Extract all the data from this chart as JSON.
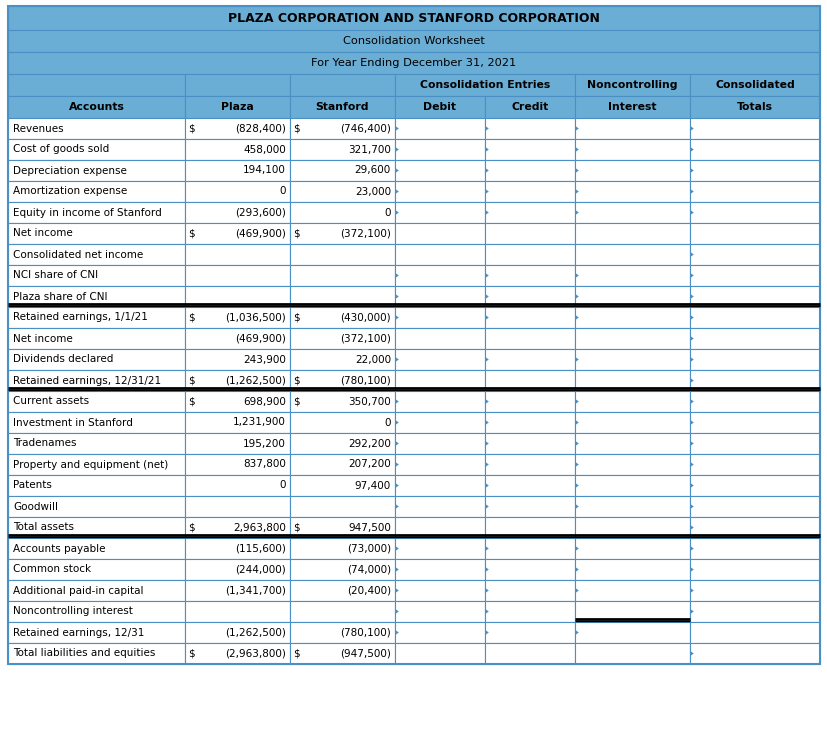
{
  "title1": "PLAZA CORPORATION AND STANFORD CORPORATION",
  "title2": "Consolidation Worksheet",
  "title3": "For Year Ending December 31, 2021",
  "header_bg": "#6aaed6",
  "white_bg": "#ffffff",
  "border_color": "#4a90c4",
  "thick_line_rows": [
    8,
    12,
    19,
    23
  ],
  "thick_line_cols_special": [
    {
      "row": 6,
      "cols": [
        6
      ]
    },
    {
      "row": 7,
      "cols": [
        3,
        4,
        5,
        6
      ]
    },
    {
      "row": 8,
      "cols": [
        3,
        4,
        5,
        6
      ]
    },
    {
      "row": 12,
      "cols": [
        6
      ]
    },
    {
      "row": 19,
      "cols": [
        6
      ]
    },
    {
      "row": 23,
      "cols": [
        5,
        6
      ]
    }
  ],
  "rows": [
    {
      "account": "Revenues",
      "plaza_sym": "$",
      "plaza": "(828,400)",
      "stanford_sym": "$",
      "stanford": "(746,400)",
      "arrows": [
        3,
        4,
        5,
        6
      ],
      "thick_bottom_totals_only": false
    },
    {
      "account": "Cost of goods sold",
      "plaza_sym": "",
      "plaza": "458,000",
      "stanford_sym": "",
      "stanford": "321,700",
      "arrows": [
        3,
        4,
        5,
        6
      ],
      "thick_bottom_totals_only": false
    },
    {
      "account": "Depreciation expense",
      "plaza_sym": "",
      "plaza": "194,100",
      "stanford_sym": "",
      "stanford": "29,600",
      "arrows": [
        3,
        4,
        5,
        6
      ],
      "thick_bottom_totals_only": false
    },
    {
      "account": "Amortization expense",
      "plaza_sym": "",
      "plaza": "0",
      "stanford_sym": "",
      "stanford": "23,000",
      "arrows": [
        3,
        4,
        5,
        6
      ],
      "thick_bottom_totals_only": false
    },
    {
      "account": "Equity in income of Stanford",
      "plaza_sym": "",
      "plaza": "(293,600)",
      "stanford_sym": "",
      "stanford": "0",
      "arrows": [
        3,
        4,
        5,
        6
      ],
      "thick_bottom_totals_only": false
    },
    {
      "account": "Net income",
      "plaza_sym": "$",
      "plaza": "(469,900)",
      "stanford_sym": "$",
      "stanford": "(372,100)",
      "arrows": [],
      "thick_bottom_totals_only": false
    },
    {
      "account": "Consolidated net income",
      "plaza_sym": "",
      "plaza": "",
      "stanford_sym": "",
      "stanford": "",
      "arrows": [
        6
      ],
      "thick_bottom_totals_only": false
    },
    {
      "account": "NCI share of CNI",
      "plaza_sym": "",
      "plaza": "",
      "stanford_sym": "",
      "stanford": "",
      "arrows": [
        3,
        4,
        5,
        6
      ],
      "thick_bottom_totals_only": false
    },
    {
      "account": "Plaza share of CNI",
      "plaza_sym": "",
      "plaza": "",
      "stanford_sym": "",
      "stanford": "",
      "arrows": [
        3,
        4,
        5,
        6
      ],
      "thick_bottom_totals_only": false,
      "double_line": true
    },
    {
      "account": "Retained earnings, 1/1/21",
      "plaza_sym": "$",
      "plaza": "(1,036,500)",
      "stanford_sym": "$",
      "stanford": "(430,000)",
      "arrows": [
        3,
        4,
        5,
        6
      ],
      "thick_bottom_totals_only": false
    },
    {
      "account": "Net income",
      "plaza_sym": "",
      "plaza": "(469,900)",
      "stanford_sym": "",
      "stanford": "(372,100)",
      "arrows": [
        6
      ],
      "thick_bottom_totals_only": false
    },
    {
      "account": "Dividends declared",
      "plaza_sym": "",
      "plaza": "243,900",
      "stanford_sym": "",
      "stanford": "22,000",
      "arrows": [
        3,
        4,
        5,
        6
      ],
      "thick_bottom_totals_only": false
    },
    {
      "account": "Retained earnings, 12/31/21",
      "plaza_sym": "$",
      "plaza": "(1,262,500)",
      "stanford_sym": "$",
      "stanford": "(780,100)",
      "arrows": [
        6
      ],
      "thick_bottom_totals_only": false,
      "double_line": true
    },
    {
      "account": "Current assets",
      "plaza_sym": "$",
      "plaza": "698,900",
      "stanford_sym": "$",
      "stanford": "350,700",
      "arrows": [
        3,
        4,
        5,
        6
      ],
      "thick_bottom_totals_only": false
    },
    {
      "account": "Investment in Stanford",
      "plaza_sym": "",
      "plaza": "1,231,900",
      "stanford_sym": "",
      "stanford": "0",
      "arrows": [
        3,
        4,
        5,
        6
      ],
      "thick_bottom_totals_only": false
    },
    {
      "account": "Tradenames",
      "plaza_sym": "",
      "plaza": "195,200",
      "stanford_sym": "",
      "stanford": "292,200",
      "arrows": [
        3,
        4,
        5,
        6
      ],
      "thick_bottom_totals_only": false
    },
    {
      "account": "Property and equipment (net)",
      "plaza_sym": "",
      "plaza": "837,800",
      "stanford_sym": "",
      "stanford": "207,200",
      "arrows": [
        3,
        4,
        5,
        6
      ],
      "thick_bottom_totals_only": false
    },
    {
      "account": "Patents",
      "plaza_sym": "",
      "plaza": "0",
      "stanford_sym": "",
      "stanford": "97,400",
      "arrows": [
        3,
        4,
        5,
        6
      ],
      "thick_bottom_totals_only": false
    },
    {
      "account": "Goodwill",
      "plaza_sym": "",
      "plaza": "",
      "stanford_sym": "",
      "stanford": "",
      "arrows": [
        3,
        4,
        5,
        6
      ],
      "thick_bottom_totals_only": false
    },
    {
      "account": "Total assets",
      "plaza_sym": "$",
      "plaza": "2,963,800",
      "stanford_sym": "$",
      "stanford": "947,500",
      "arrows": [
        6
      ],
      "thick_bottom_totals_only": false,
      "double_line": true
    },
    {
      "account": "Accounts payable",
      "plaza_sym": "",
      "plaza": "(115,600)",
      "stanford_sym": "",
      "stanford": "(73,000)",
      "arrows": [
        3,
        4,
        5,
        6
      ],
      "thick_bottom_totals_only": false
    },
    {
      "account": "Common stock",
      "plaza_sym": "",
      "plaza": "(244,000)",
      "stanford_sym": "",
      "stanford": "(74,000)",
      "arrows": [
        3,
        4,
        5,
        6
      ],
      "thick_bottom_totals_only": false
    },
    {
      "account": "Additional paid-in capital",
      "plaza_sym": "",
      "plaza": "(1,341,700)",
      "stanford_sym": "",
      "stanford": "(20,400)",
      "arrows": [
        3,
        4,
        5,
        6
      ],
      "thick_bottom_totals_only": false
    },
    {
      "account": "Noncontrolling interest",
      "plaza_sym": "",
      "plaza": "",
      "stanford_sym": "",
      "stanford": "",
      "arrows": [
        3,
        4,
        6
      ],
      "thick_bottom_totals_only": false,
      "double_line_col5": true
    },
    {
      "account": "Retained earnings, 12/31",
      "plaza_sym": "",
      "plaza": "(1,262,500)",
      "stanford_sym": "",
      "stanford": "(780,100)",
      "arrows": [
        3,
        4,
        5
      ],
      "thick_bottom_totals_only": false
    },
    {
      "account": "Total liabilities and equities",
      "plaza_sym": "$",
      "plaza": "(2,963,800)",
      "stanford_sym": "$",
      "stanford": "(947,500)",
      "arrows": [
        6
      ],
      "thick_bottom_totals_only": false
    }
  ]
}
